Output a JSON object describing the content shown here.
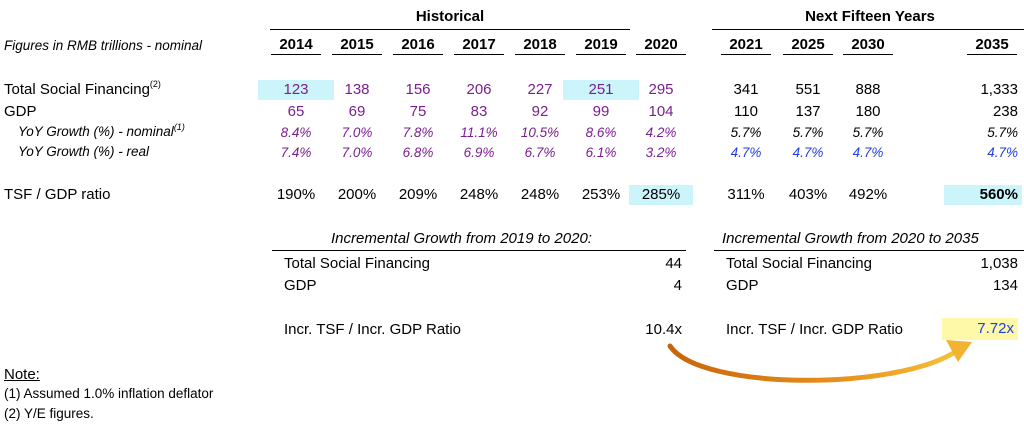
{
  "header": {
    "historical_label": "Historical",
    "next_label": "Next Fifteen Years",
    "units_label": "Figures in RMB trillions - nominal",
    "years": [
      "2014",
      "2015",
      "2016",
      "2017",
      "2018",
      "2019",
      "2020",
      "2021",
      "2025",
      "2030",
      "2035"
    ]
  },
  "rows": {
    "tsf": {
      "label": "Total Social Financing",
      "sup": "(2)",
      "values": [
        "123",
        "138",
        "156",
        "206",
        "227",
        "251",
        "295",
        "341",
        "551",
        "888",
        "1,333"
      ]
    },
    "gdp": {
      "label": "GDP",
      "values": [
        "65",
        "69",
        "75",
        "83",
        "92",
        "99",
        "104",
        "110",
        "137",
        "180",
        "238"
      ]
    },
    "yoy_nominal": {
      "label": "YoY Growth (%) - nominal",
      "sup": "(1)",
      "values": [
        "8.4%",
        "7.0%",
        "7.8%",
        "11.1%",
        "10.5%",
        "8.6%",
        "4.2%",
        "5.7%",
        "5.7%",
        "5.7%",
        "5.7%"
      ]
    },
    "yoy_real": {
      "label": "YoY Growth (%) - real",
      "values": [
        "7.4%",
        "7.0%",
        "6.8%",
        "6.9%",
        "6.7%",
        "6.1%",
        "3.2%",
        "4.7%",
        "4.7%",
        "4.7%",
        "4.7%"
      ]
    },
    "ratio": {
      "label": "TSF / GDP ratio",
      "values": [
        "190%",
        "200%",
        "209%",
        "248%",
        "248%",
        "253%",
        "285%",
        "311%",
        "403%",
        "492%",
        "560%"
      ]
    }
  },
  "incremental_left": {
    "title": "Incremental Growth from 2019 to 2020:",
    "tsf_label": "Total Social Financing",
    "tsf_value": "44",
    "gdp_label": "GDP",
    "gdp_value": "4",
    "ratio_label": "Incr. TSF / Incr. GDP Ratio",
    "ratio_value": "10.4x"
  },
  "incremental_right": {
    "title": "Incremental Growth from 2020 to 2035",
    "tsf_label": "Total Social Financing",
    "tsf_value": "1,038",
    "gdp_label": "GDP",
    "gdp_value": "134",
    "ratio_label": "Incr. TSF / Incr. GDP Ratio",
    "ratio_value": "7.72x"
  },
  "notes": {
    "title": "Note:",
    "n1": "(1) Assumed 1.0% inflation deflator",
    "n2": "(2) Y/E figures."
  },
  "colors": {
    "purple": "#7a1f8f",
    "blue": "#1f3fe0",
    "cyan_highlight": "#ccf4fb",
    "yellow_highlight": "#fdf9a8",
    "arrow": "#e8921c"
  }
}
